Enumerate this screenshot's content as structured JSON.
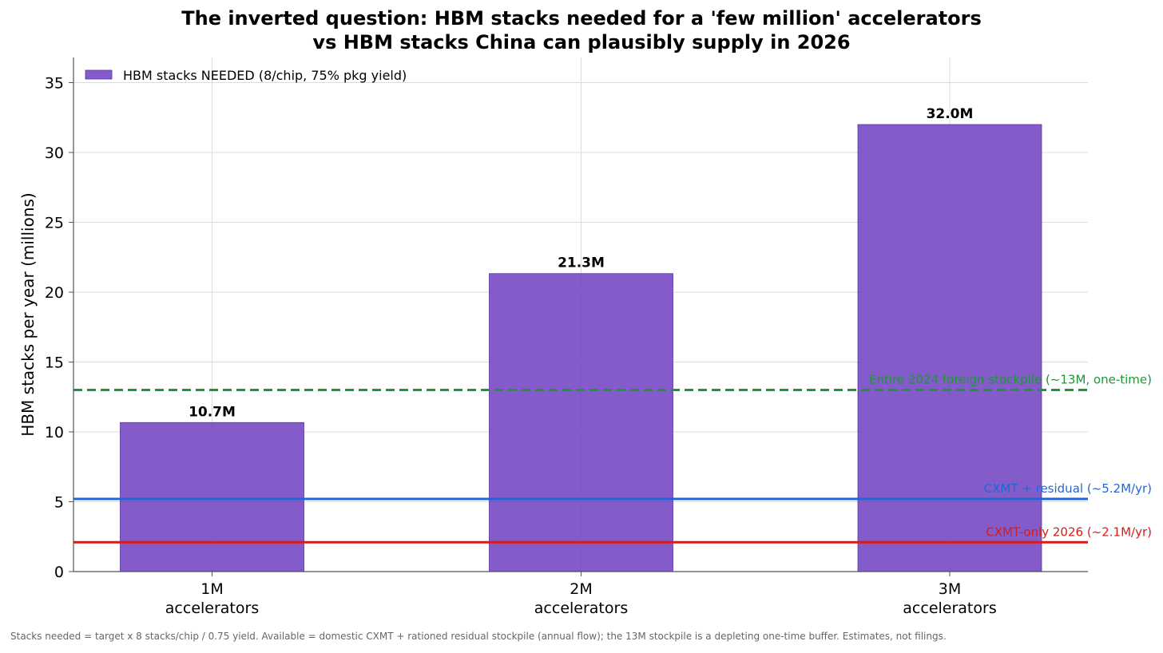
{
  "chart_data": {
    "type": "bar",
    "title_lines": [
      "The inverted question: HBM stacks needed for a 'few million' accelerators",
      "vs HBM stacks China can plausibly supply in 2026"
    ],
    "xlabel": "",
    "ylabel": "HBM stacks per year (millions)",
    "ylim": [
      0,
      36.8
    ],
    "yticks": [
      0,
      5,
      10,
      15,
      20,
      25,
      30,
      35
    ],
    "grid": true,
    "legend_position": "top-left",
    "categories": [
      [
        "1M",
        "accelerators"
      ],
      [
        "2M",
        "accelerators"
      ],
      [
        "3M",
        "accelerators"
      ]
    ],
    "series": [
      {
        "name": "HBM stacks NEEDED (8/chip, 75% pkg yield)",
        "values": [
          10.67,
          21.33,
          32.0
        ],
        "labels": [
          "10.7M",
          "21.3M",
          "32.0M"
        ],
        "color": "#7246c3"
      }
    ],
    "reference_lines": [
      {
        "label": "Entire 2024 foreign stockpile (~13M, one-time)",
        "value": 13.0,
        "style": "dashed",
        "color": "#1f9636"
      },
      {
        "label": "CXMT + residual (~5.2M/yr)",
        "value": 5.2,
        "style": "solid",
        "color": "#1f66d9"
      },
      {
        "label": "CXMT-only 2026 (~2.1M/yr)",
        "value": 2.1,
        "style": "solid",
        "color": "#d41c1c"
      }
    ],
    "footnote": "Stacks needed = target x 8 stacks/chip / 0.75 yield. Available = domestic CXMT + rationed residual stockpile (annual flow); the 13M stockpile is a depleting one-time buffer. Estimates, not filings."
  }
}
